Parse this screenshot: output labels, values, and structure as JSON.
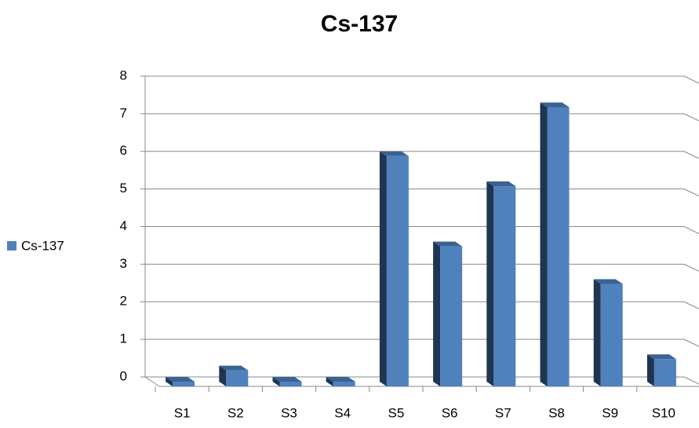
{
  "chart_data": {
    "type": "bar",
    "title": "Cs-137",
    "categories": [
      "S1",
      "S2",
      "S3",
      "S4",
      "S5",
      "S6",
      "S7",
      "S8",
      "S9",
      "S10"
    ],
    "series": [
      {
        "name": "Cs-137",
        "color": "#4f81bd",
        "values": [
          0,
          0.3,
          0,
          0,
          6.0,
          3.6,
          5.2,
          7.3,
          2.6,
          0.6
        ]
      }
    ],
    "ylim": [
      0,
      8
    ],
    "yticks": [
      0,
      1,
      2,
      3,
      4,
      5,
      6,
      7,
      8
    ],
    "grid": true,
    "legend": "left"
  }
}
